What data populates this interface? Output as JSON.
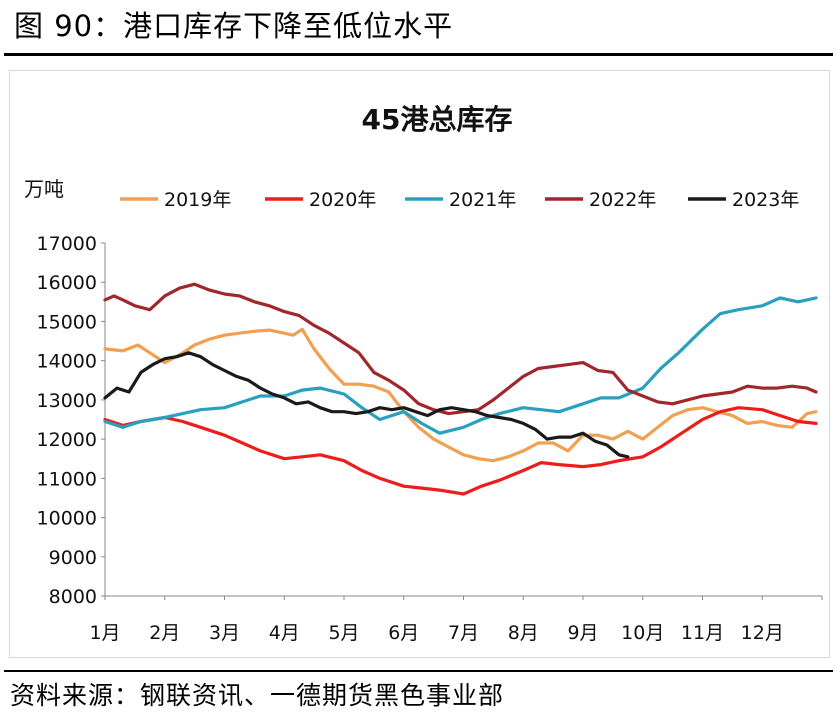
{
  "figure": {
    "title": "图 90：港口库存下降至低位水平",
    "source": "资料来源：钢联资讯、一德期货黑色事业部"
  },
  "chart_data": {
    "type": "line",
    "title": "45港总库存",
    "ylabel": "万吨",
    "xlabel": "",
    "ylim": [
      8000,
      17000
    ],
    "yticks": [
      8000,
      9000,
      10000,
      11000,
      12000,
      13000,
      14000,
      15000,
      16000,
      17000
    ],
    "xlim": [
      1,
      13
    ],
    "xtick_labels": [
      "1月",
      "2月",
      "3月",
      "4月",
      "5月",
      "6月",
      "7月",
      "8月",
      "9月",
      "10月",
      "11月",
      "12月"
    ],
    "legend_position": "top",
    "grid": false,
    "series": [
      {
        "name": "2019年",
        "color": "#f0a050",
        "x": [
          1.0,
          1.3,
          1.55,
          1.75,
          2.0,
          2.25,
          2.5,
          2.75,
          3.0,
          3.25,
          3.5,
          3.75,
          4.0,
          4.15,
          4.3,
          4.5,
          4.75,
          5.0,
          5.25,
          5.5,
          5.75,
          6.0,
          6.25,
          6.5,
          6.75,
          7.0,
          7.25,
          7.5,
          7.75,
          8.0,
          8.25,
          8.5,
          8.75,
          9.0,
          9.25,
          9.5,
          9.75,
          10.0,
          10.25,
          10.5,
          10.75,
          11.0,
          11.25,
          11.5,
          11.75,
          12.0,
          12.25,
          12.5,
          12.75,
          12.9
        ],
        "values": [
          14300,
          14250,
          14400,
          14200,
          13950,
          14150,
          14400,
          14550,
          14650,
          14700,
          14750,
          14780,
          14700,
          14650,
          14800,
          14300,
          13800,
          13400,
          13400,
          13350,
          13200,
          12700,
          12300,
          12000,
          11800,
          11600,
          11500,
          11450,
          11550,
          11700,
          11900,
          11900,
          11700,
          12100,
          12100,
          12000,
          12200,
          12000,
          12300,
          12600,
          12750,
          12800,
          12700,
          12600,
          12400,
          12450,
          12350,
          12300,
          12650,
          12700
        ]
      },
      {
        "name": "2020年",
        "color": "#ee1c1c",
        "x": [
          1.0,
          1.3,
          1.6,
          2.0,
          2.3,
          2.6,
          3.0,
          3.3,
          3.6,
          4.0,
          4.3,
          4.6,
          5.0,
          5.3,
          5.6,
          6.0,
          6.3,
          6.6,
          7.0,
          7.3,
          7.6,
          8.0,
          8.3,
          8.6,
          9.0,
          9.3,
          9.6,
          10.0,
          10.3,
          10.6,
          11.0,
          11.3,
          11.6,
          12.0,
          12.3,
          12.6,
          12.9
        ],
        "values": [
          12500,
          12350,
          12450,
          12550,
          12450,
          12300,
          12100,
          11900,
          11700,
          11500,
          11550,
          11600,
          11450,
          11200,
          11000,
          10800,
          10750,
          10700,
          10600,
          10800,
          10950,
          11200,
          11400,
          11350,
          11300,
          11350,
          11450,
          11550,
          11800,
          12100,
          12500,
          12700,
          12800,
          12750,
          12600,
          12450,
          12400
        ]
      },
      {
        "name": "2021年",
        "color": "#2aa0c0",
        "x": [
          1.0,
          1.3,
          1.6,
          2.0,
          2.3,
          2.6,
          3.0,
          3.3,
          3.6,
          4.0,
          4.3,
          4.6,
          5.0,
          5.3,
          5.6,
          6.0,
          6.3,
          6.6,
          7.0,
          7.3,
          7.6,
          8.0,
          8.3,
          8.6,
          9.0,
          9.3,
          9.6,
          10.0,
          10.3,
          10.6,
          11.0,
          11.3,
          11.6,
          12.0,
          12.3,
          12.6,
          12.9
        ],
        "values": [
          12450,
          12300,
          12450,
          12550,
          12650,
          12750,
          12800,
          12950,
          13100,
          13100,
          13250,
          13300,
          13150,
          12800,
          12500,
          12700,
          12400,
          12150,
          12300,
          12500,
          12650,
          12800,
          12750,
          12700,
          12900,
          13050,
          13050,
          13300,
          13800,
          14200,
          14800,
          15200,
          15300,
          15400,
          15600,
          15500,
          15600
        ]
      },
      {
        "name": "2022年",
        "color": "#a0282c",
        "x": [
          1.0,
          1.15,
          1.3,
          1.5,
          1.75,
          2.0,
          2.25,
          2.5,
          2.75,
          3.0,
          3.25,
          3.5,
          3.75,
          4.0,
          4.25,
          4.5,
          4.75,
          5.0,
          5.25,
          5.5,
          5.75,
          6.0,
          6.25,
          6.5,
          6.75,
          7.0,
          7.25,
          7.5,
          7.75,
          8.0,
          8.25,
          8.5,
          8.75,
          9.0,
          9.25,
          9.5,
          9.75,
          10.0,
          10.25,
          10.5,
          10.75,
          11.0,
          11.25,
          11.5,
          11.75,
          12.0,
          12.25,
          12.5,
          12.75,
          12.9
        ],
        "values": [
          15550,
          15650,
          15550,
          15400,
          15300,
          15650,
          15850,
          15950,
          15800,
          15700,
          15650,
          15500,
          15400,
          15250,
          15150,
          14900,
          14700,
          14450,
          14200,
          13700,
          13500,
          13250,
          12900,
          12750,
          12650,
          12700,
          12750,
          13000,
          13300,
          13600,
          13800,
          13850,
          13900,
          13950,
          13750,
          13700,
          13250,
          13100,
          12950,
          12900,
          13000,
          13100,
          13150,
          13200,
          13350,
          13300,
          13300,
          13350,
          13300,
          13200
        ]
      },
      {
        "name": "2023年",
        "color": "#1a1a1a",
        "x": [
          1.0,
          1.2,
          1.4,
          1.6,
          1.8,
          2.0,
          2.2,
          2.4,
          2.6,
          2.8,
          3.0,
          3.2,
          3.4,
          3.6,
          3.8,
          4.0,
          4.2,
          4.4,
          4.6,
          4.8,
          5.0,
          5.2,
          5.4,
          5.6,
          5.8,
          6.0,
          6.2,
          6.4,
          6.6,
          6.8,
          7.0,
          7.2,
          7.4,
          7.6,
          7.8,
          8.0,
          8.2,
          8.4,
          8.6,
          8.8,
          9.0,
          9.2,
          9.4,
          9.6,
          9.75
        ],
        "values": [
          13050,
          13300,
          13200,
          13700,
          13900,
          14050,
          14100,
          14200,
          14100,
          13900,
          13750,
          13600,
          13500,
          13300,
          13150,
          13050,
          12900,
          12950,
          12800,
          12700,
          12700,
          12650,
          12700,
          12800,
          12750,
          12800,
          12700,
          12600,
          12750,
          12800,
          12750,
          12700,
          12600,
          12550,
          12500,
          12400,
          12250,
          12000,
          12050,
          12050,
          12150,
          11950,
          11850,
          11600,
          11550
        ]
      }
    ]
  }
}
